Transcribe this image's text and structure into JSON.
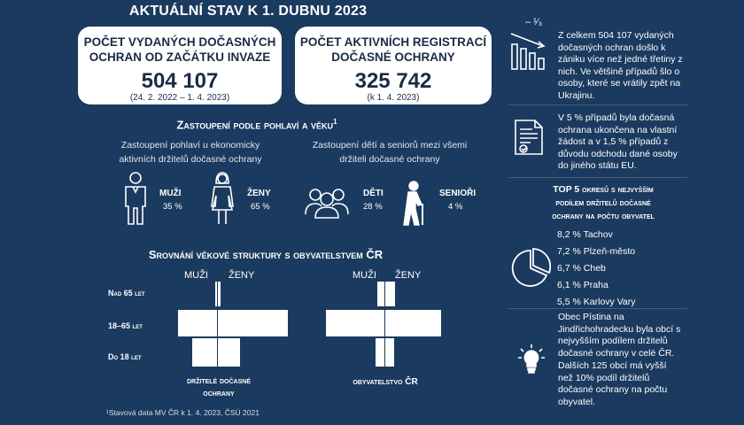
{
  "header": {
    "title": "AKTUÁLNÍ STAV K 1. DUBNU 2023"
  },
  "cards": [
    {
      "title_line1": "POČET VYDANÝCH DOČASNÝCH",
      "title_line2": "OCHRAN OD ZAČÁTKU INVAZE",
      "value": "504 107",
      "sub": "(24. 2. 2022 – 1. 4. 2023)"
    },
    {
      "title_line1": "POČET AKTIVNÍCH REGISTRACÍ",
      "title_line2": "DOČASNÉ OCHRANY",
      "value": "325 742",
      "sub": "(k 1. 4. 2023)"
    }
  ],
  "gender_section": {
    "title": "Zastoupení podle pohlaví a věku",
    "footnote_mark": "1",
    "left_caption_line1": "Zastoupení pohlaví u ekonomicky",
    "left_caption_line2": "aktivních držitelů dočasné ochrany",
    "right_caption_line1": "Zastoupení dětí a seniorů mezi všemi",
    "right_caption_line2": "držiteli dočasné ochrany",
    "men_label": "MUŽI",
    "men_value": "35 %",
    "women_label": "ŽENY",
    "women_value": "65 %",
    "children_label": "DĚTI",
    "children_value": "28 %",
    "seniors_label": "SENIOŘI",
    "seniors_value": "4 %"
  },
  "comparison": {
    "title": "Srovnání věkové struktury s obyvatelstvem ČR",
    "men": "MUŽI",
    "women": "ŽENY",
    "ages": [
      "Nad 65 let",
      "18–65 let",
      "Do 18 let"
    ],
    "left_caption_line1": "držitelé dočasné",
    "left_caption_line2": "ochrany",
    "right_caption": "obyvatelstvo ČR"
  },
  "footnote": "¹Stavová data MV ČR k 1. 4. 2023, ČSÚ 2021",
  "sidebar": {
    "fraction": "– ¹⁄₃",
    "block1": "Z celkem 504 107 vydaných dočasných ochran došlo k zániku více než jedné třetiny z nich. Ve většině případů šlo o osoby, které se vrátily zpět na Ukrajinu.",
    "block2": "V 5 % případů byla dočasná ochrana ukončena na vlastní žádost a v 1,5 % případů z důvodu odchodu dané osoby do jiného státu EU.",
    "top5_title_line1": "TOP 5 okresů s nejvyšším",
    "top5_title_line2": "podílem držitelů dočasné",
    "top5_title_line3": "ochrany na počtu obyvatel",
    "top5": [
      "8,2 % Tachov",
      "7,2 % Plzeň-město",
      "6,7 % Cheb",
      "6,1 % Praha",
      "5,5 % Karlovy Vary"
    ],
    "block3": "Obec Pístina na Jindřichohradecku byla obcí s nejvyšším podílem držitelů dočasné ochrany v celé ČR.",
    "block4": "Dalších 125 obcí má vyšší než 10% podíl držitelů dočasné ochrany na počtu obyvatel."
  }
}
